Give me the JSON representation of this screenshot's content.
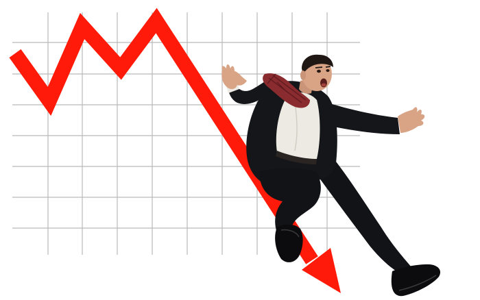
{
  "scene": {
    "background": "#ffffff",
    "grid_color": "#b9b9b9",
    "arrow_color": "#ff1a0a",
    "arrow_direction": "down-right",
    "suit_color": "#15161a",
    "shirt_color": "#eceae2",
    "scarf_color": "#8a2b2f",
    "skin_color": "#d9a486",
    "hair_color": "#1f1714",
    "subject": "businessman-falling-off-declining-arrow"
  }
}
